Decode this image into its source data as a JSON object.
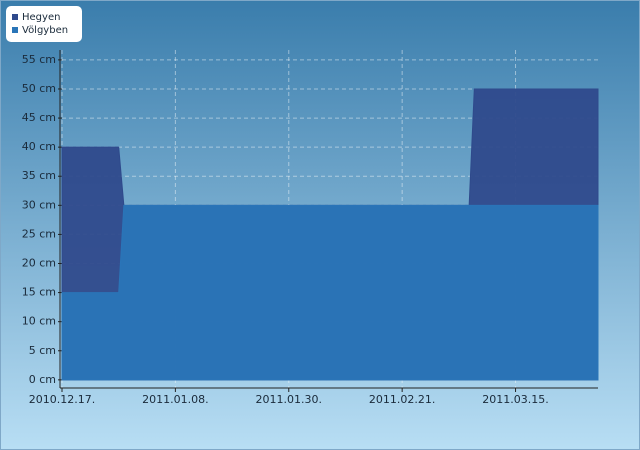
{
  "chart_data": {
    "type": "area",
    "x": [
      "2010-12-17",
      "2010-12-28",
      "2010-12-29",
      "2011-03-06",
      "2011-03-07",
      "2011-03-31"
    ],
    "series": [
      {
        "name": "Hegyen",
        "color": "#2f4a8c",
        "values": [
          40,
          40,
          30,
          30,
          50,
          50
        ]
      },
      {
        "name": "Völgyben",
        "color": "#2a75b8",
        "values": [
          15,
          15,
          30,
          30,
          30,
          30
        ]
      }
    ],
    "xlim": [
      "2010-12-17",
      "2011-03-31"
    ],
    "xticks": [
      {
        "value": "2010-12-17",
        "label": "2010.12.17."
      },
      {
        "value": "2011-01-08",
        "label": "2011.01.08."
      },
      {
        "value": "2011-01-30",
        "label": "2011.01.30."
      },
      {
        "value": "2011-02-21",
        "label": "2011.02.21."
      },
      {
        "value": "2011-03-15",
        "label": "2011.03.15."
      }
    ],
    "ylim": [
      -1.4,
      56.7
    ],
    "yticks": [
      {
        "value": 0,
        "label": "0 cm"
      },
      {
        "value": 5,
        "label": "5 cm"
      },
      {
        "value": 10,
        "label": "10 cm"
      },
      {
        "value": 15,
        "label": "15 cm"
      },
      {
        "value": 20,
        "label": "20 cm"
      },
      {
        "value": 25,
        "label": "25 cm"
      },
      {
        "value": 30,
        "label": "30 cm"
      },
      {
        "value": 35,
        "label": "35 cm"
      },
      {
        "value": 40,
        "label": "40 cm"
      },
      {
        "value": 45,
        "label": "45 cm"
      },
      {
        "value": 50,
        "label": "50 cm"
      },
      {
        "value": 55,
        "label": "55 cm"
      }
    ],
    "grid": true
  }
}
